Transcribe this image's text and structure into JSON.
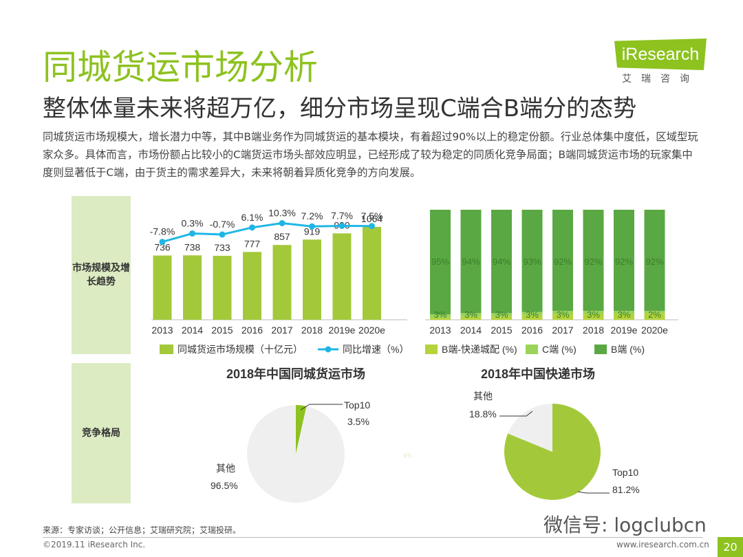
{
  "header": {
    "title": "同城货运市场分析",
    "subtitle": "整体体量未来将超万亿，细分市场呈现C端合B端分的态势",
    "paragraph": "同城货运市场规模大，增长潜力中等，其中B端业务作为同城货运的基本模块，有着超过90%以上的稳定份额。行业总体集中度低，区域型玩家众多。具体而言，市场份额占比较小的C端货运市场头部效应明显，已经形成了较为稳定的同质化竞争局面；B端同城货运市场的玩家集中度则显著低于C端，由于货主的需求差异大，未来将朝着异质化竞争的方向发展。"
  },
  "logo": {
    "brand": "iResearch",
    "cn": "艾瑞咨询"
  },
  "sections": {
    "trend": "市场规模及增长趋势",
    "competition": "竞争格局"
  },
  "colors": {
    "accent": "#8dc21f",
    "bar": "#a3c93a",
    "line": "#1fb6e6",
    "dark_green": "#5aa843",
    "light_green": "#8dc21f",
    "gray_slice": "#efefef"
  },
  "chart_data": [
    {
      "type": "bar",
      "id": "market-size",
      "categories": [
        "2013",
        "2014",
        "2015",
        "2016",
        "2017",
        "2018",
        "2019e",
        "2020e"
      ],
      "series": [
        {
          "name": "同城货运市场规模（十亿元）",
          "values": [
            736,
            738,
            733,
            777,
            857,
            919,
            990,
            1064
          ]
        },
        {
          "name": "同比增速（%）",
          "type": "line",
          "values": [
            -7.8,
            0.3,
            -0.7,
            6.1,
            10.3,
            7.2,
            7.7,
            7.5
          ],
          "labels": [
            "-7.8%",
            "0.3%",
            "-0.7%",
            "6.1%",
            "10.3%",
            "7.2%",
            "7.7%",
            "7.5%"
          ]
        }
      ]
    },
    {
      "type": "bar",
      "id": "market-share",
      "stacked": true,
      "categories": [
        "2013",
        "2014",
        "2015",
        "2016",
        "2017",
        "2018",
        "2019e",
        "2020e"
      ],
      "series": [
        {
          "name": "B端-快递城配 (%)",
          "values": [
            2,
            3,
            3,
            4,
            5,
            5,
            5,
            6
          ]
        },
        {
          "name": "C端 (%)",
          "values": [
            3,
            3,
            3,
            3,
            3,
            3,
            3,
            2
          ],
          "labels": [
            "3%",
            "3%",
            "3%",
            "3%",
            "3%",
            "3%",
            "3%",
            "2%"
          ]
        },
        {
          "name": "B端 (%)",
          "values": [
            95,
            94,
            94,
            93,
            92,
            92,
            92,
            92
          ],
          "labels": [
            "95%",
            "94%",
            "94%",
            "93%",
            "92%",
            "92%",
            "92%",
            "92%"
          ]
        }
      ]
    },
    {
      "type": "pie",
      "id": "intracity-2018",
      "title": "2018年中国同城货运市场",
      "slices": [
        {
          "name": "Top10",
          "value": 3.5,
          "label": "3.5%"
        },
        {
          "name": "其他",
          "value": 96.5,
          "label": "96.5%"
        }
      ]
    },
    {
      "type": "pie",
      "id": "express-2018",
      "title": "2018年中国快递市场",
      "slices": [
        {
          "name": "Top10",
          "value": 81.2,
          "label": "81.2%"
        },
        {
          "name": "其他",
          "value": 18.8,
          "label": "18.8%"
        }
      ]
    }
  ],
  "vs_label": "vs.",
  "footer": {
    "source": "来源：专家访谈；公开信息；艾瑞研究院；艾瑞投研。",
    "copyright": "©2019.11 iResearch Inc.",
    "website": "www.iresearch.com.cn",
    "page": "20",
    "wechat": "微信号: logclubcn"
  }
}
